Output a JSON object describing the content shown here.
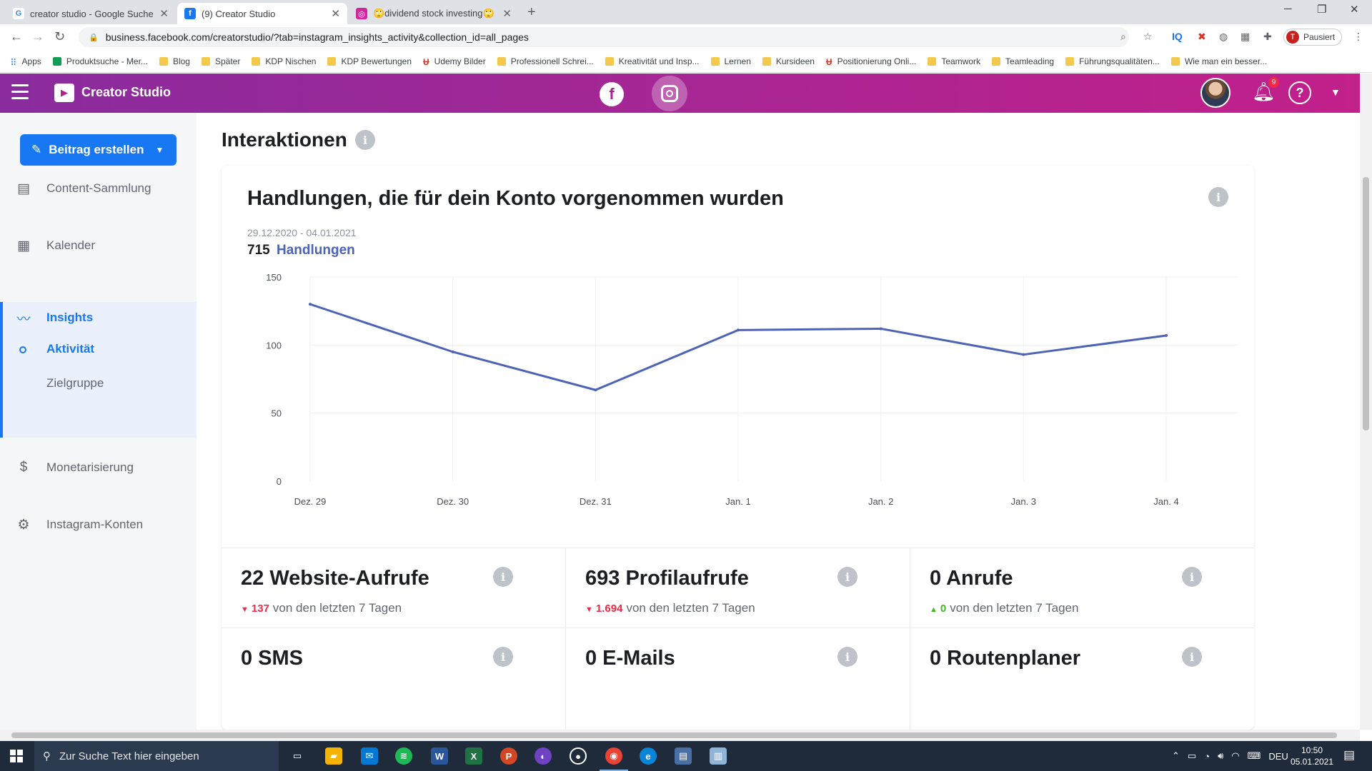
{
  "browser": {
    "tabs": [
      {
        "title": "creator studio - Google Suche",
        "favicon": "G",
        "favicon_bg": "#ffffff",
        "favicon_fg": "#4285f4"
      },
      {
        "title": "(9) Creator Studio",
        "favicon": "f",
        "favicon_bg": "#1877f2",
        "favicon_fg": "#ffffff"
      },
      {
        "title": "🙄dividend stock investing🙄",
        "favicon": "◎",
        "favicon_bg": "#d6249f",
        "favicon_fg": "#ffffff"
      }
    ],
    "url": "business.facebook.com/creatorstudio/?tab=instagram_insights_activity&collection_id=all_pages",
    "profile_label": "Pausiert",
    "profile_initial": "T",
    "bookmarks": [
      {
        "label": "Apps",
        "icon": "apps-grid-icon"
      },
      {
        "label": "Produktsuche - Mer...",
        "icon": "green-icon"
      },
      {
        "label": "Blog",
        "icon": "folder-icon"
      },
      {
        "label": "Später",
        "icon": "folder-icon"
      },
      {
        "label": "KDP Nischen",
        "icon": "folder-icon"
      },
      {
        "label": "KDP Bewertungen",
        "icon": "folder-icon"
      },
      {
        "label": "Udemy Bilder",
        "icon": "udemy-icon"
      },
      {
        "label": "Professionell Schrei...",
        "icon": "folder-icon"
      },
      {
        "label": "Kreativität und Insp...",
        "icon": "folder-icon"
      },
      {
        "label": "Lernen",
        "icon": "folder-icon"
      },
      {
        "label": "Kursideen",
        "icon": "folder-icon"
      },
      {
        "label": "Positionierung Onli...",
        "icon": "udemy-icon"
      },
      {
        "label": "Teamwork",
        "icon": "folder-icon"
      },
      {
        "label": "Teamleading",
        "icon": "folder-icon"
      },
      {
        "label": "Führungsqualitäten...",
        "icon": "folder-icon"
      },
      {
        "label": "Wie man ein besser...",
        "icon": "folder-icon"
      }
    ]
  },
  "header": {
    "title": "Creator Studio",
    "notification_count": "9",
    "help_symbol": "?"
  },
  "sidebar": {
    "create_button": "Beitrag erstellen",
    "items": [
      {
        "label": "Content-Sammlung",
        "icon": "content-library-icon"
      },
      {
        "label": "Kalender",
        "icon": "calendar-icon"
      },
      {
        "label": "Insights",
        "icon": "insights-chart-icon"
      },
      {
        "label": "Monetarisierung",
        "icon": "dollar-icon"
      },
      {
        "label": "Instagram-Konten",
        "icon": "account-settings-icon"
      }
    ],
    "subitems": [
      {
        "label": "Aktivität",
        "active": true
      },
      {
        "label": "Zielgruppe",
        "active": false
      }
    ]
  },
  "main": {
    "section_title": "Interaktionen",
    "card": {
      "title": "Handlungen, die für dein Konto vorgenommen wurden",
      "date_range": "29.12.2020 - 04.01.2021",
      "total_value": "715",
      "total_unit": "Handlungen"
    },
    "stats": [
      {
        "title": "22 Website-Aufrufe",
        "delta": "137",
        "direction": "down",
        "suffix": "von den letzten 7 Tagen"
      },
      {
        "title": "693 Profilaufrufe",
        "delta": "1.694",
        "direction": "down",
        "suffix": "von den letzten 7 Tagen"
      },
      {
        "title": "0 Anrufe",
        "delta": "0",
        "direction": "up",
        "suffix": "von den letzten 7 Tagen"
      },
      {
        "title": "0 SMS"
      },
      {
        "title": "0 E-Mails"
      },
      {
        "title": "0 Routenplaner"
      }
    ]
  },
  "chart_data": {
    "type": "line",
    "categories": [
      "Dez. 29",
      "Dez. 30",
      "Dez. 31",
      "Jan. 1",
      "Jan. 2",
      "Jan. 3",
      "Jan. 4"
    ],
    "series": [
      {
        "values": [
          130,
          95,
          67,
          111,
          112,
          93,
          107
        ],
        "color": "#4c63b6"
      }
    ],
    "yticks": [
      0,
      50,
      100,
      150
    ],
    "ylim": [
      0,
      150
    ],
    "grid": true,
    "title": "",
    "xlabel": "",
    "ylabel": ""
  },
  "taskbar": {
    "search_placeholder": "Zur Suche Text hier eingeben",
    "language": "DEU",
    "time": "10:50",
    "date": "05.01.2021"
  }
}
